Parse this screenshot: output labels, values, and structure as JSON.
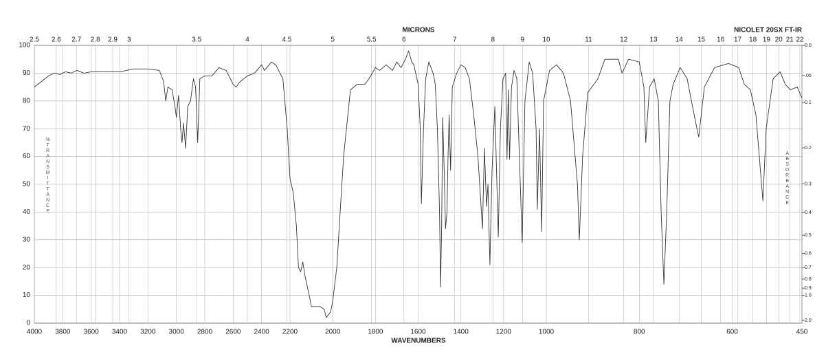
{
  "chart_data": {
    "type": "line",
    "x2label": "MICRONS",
    "annotation": "NICOLET 20SX FT-IR",
    "xlabel": "WAVENUMBERS",
    "ylabel": "%TRANSMITTANCE",
    "y2label": "ABSORBANCE",
    "color": "#333333",
    "grid": true,
    "xlim": [
      4000,
      450
    ],
    "xscale": "piecewise",
    "xbreaks": [
      4000,
      2200,
      1000,
      450
    ],
    "xticks": [
      4000,
      3800,
      3600,
      3400,
      3200,
      3000,
      2800,
      2600,
      2400,
      2200,
      2000,
      1800,
      1600,
      1400,
      1200,
      1000,
      800,
      600,
      450
    ],
    "x2scale": "microns",
    "x2ticks": [
      2.5,
      2.6,
      2.7,
      2.8,
      2.9,
      3,
      3.5,
      4,
      4.5,
      5,
      5.5,
      6,
      7,
      8,
      9,
      10,
      11,
      12,
      13,
      14,
      15,
      16,
      17,
      18,
      19,
      20,
      21,
      22
    ],
    "ylim": [
      0,
      100
    ],
    "yticks": [
      0,
      10,
      20,
      30,
      40,
      50,
      60,
      70,
      80,
      90,
      100
    ],
    "y2scale": "absorbance",
    "y2ticks": [
      {
        "value": 0,
        "label": "0.0"
      },
      {
        "value": 0.05,
        "label": ".05"
      },
      0.1,
      0.2,
      0.3,
      0.4,
      0.5,
      0.6,
      0.7,
      0.8,
      0.9,
      {
        "value": 1,
        "label": "1.0"
      },
      {
        "value": 2,
        "label": "2.0"
      }
    ],
    "x": [
      4000,
      3950,
      3900,
      3860,
      3820,
      3780,
      3740,
      3700,
      3650,
      3600,
      3500,
      3400,
      3300,
      3200,
      3120,
      3090,
      3075,
      3060,
      3030,
      3010,
      3000,
      2985,
      2970,
      2960,
      2950,
      2935,
      2920,
      2900,
      2880,
      2865,
      2850,
      2835,
      2800,
      2750,
      2700,
      2650,
      2600,
      2580,
      2550,
      2500,
      2450,
      2400,
      2380,
      2330,
      2300,
      2270,
      2250,
      2220,
      2200,
      2185,
      2170,
      2160,
      2150,
      2140,
      2130,
      2110,
      2100,
      2060,
      2040,
      2030,
      2010,
      2000,
      1981,
      1965,
      1949,
      1917,
      1885,
      1850,
      1830,
      1800,
      1780,
      1750,
      1720,
      1700,
      1680,
      1660,
      1645,
      1630,
      1620,
      1600,
      1590,
      1585,
      1575,
      1565,
      1550,
      1540,
      1530,
      1520,
      1510,
      1500,
      1495,
      1490,
      1485,
      1478,
      1472,
      1465,
      1460,
      1455,
      1448,
      1440,
      1420,
      1400,
      1380,
      1360,
      1340,
      1320,
      1299,
      1290,
      1280,
      1273,
      1264,
      1254,
      1241,
      1225,
      1215,
      1203,
      1190,
      1184,
      1178,
      1172,
      1163,
      1151,
      1138,
      1113,
      1100,
      1080,
      1064,
      1048,
      1042,
      1032,
      1022,
      1013,
      993,
      978,
      963,
      948,
      933,
      929,
      922,
      911,
      889,
      874,
      845,
      837,
      823,
      800,
      790,
      786,
      778,
      768,
      759,
      753,
      747,
      741,
      734,
      727,
      712,
      697,
      682,
      672,
      660,
      638,
      608,
      586,
      574,
      561,
      549,
      537,
      534,
      527,
      512,
      497,
      486,
      475,
      460,
      450
    ],
    "values": [
      85,
      87,
      89,
      90,
      89.5,
      90.5,
      90,
      91,
      90,
      90.5,
      90.5,
      90.5,
      91.5,
      91.5,
      91,
      87,
      80,
      85,
      84,
      78,
      74,
      82,
      70,
      65,
      72,
      63,
      78,
      80,
      88,
      85,
      65,
      88,
      89,
      89,
      92,
      91,
      86,
      85,
      87,
      89,
      90,
      93,
      91,
      94,
      93,
      90,
      88,
      70,
      52,
      47,
      35,
      20,
      18.5,
      22,
      17,
      10,
      6,
      6,
      5,
      2,
      4,
      8,
      20,
      40,
      60,
      84,
      86,
      86,
      88,
      92,
      91,
      93,
      91,
      94,
      92,
      95,
      98,
      94,
      93,
      86,
      70,
      43,
      70,
      88,
      94,
      92,
      90,
      86,
      70,
      40,
      13,
      35,
      74,
      55,
      34,
      40,
      60,
      75,
      55,
      85,
      90,
      93,
      92,
      88,
      75,
      60,
      34,
      63,
      42,
      50,
      21,
      55,
      78,
      31,
      70,
      88,
      90,
      59,
      84,
      59,
      85,
      91,
      88,
      29,
      80,
      94,
      90,
      70,
      41,
      70,
      33,
      80,
      91,
      93,
      90,
      80,
      50,
      30,
      60,
      83,
      88,
      95,
      95,
      90,
      95,
      94,
      85,
      65,
      85,
      88,
      80,
      40,
      14,
      40,
      80,
      86,
      92,
      88,
      75,
      67,
      85,
      92,
      93.5,
      92,
      86,
      84,
      75,
      50,
      44,
      70,
      88,
      90.5,
      86,
      84,
      85,
      81
    ]
  }
}
